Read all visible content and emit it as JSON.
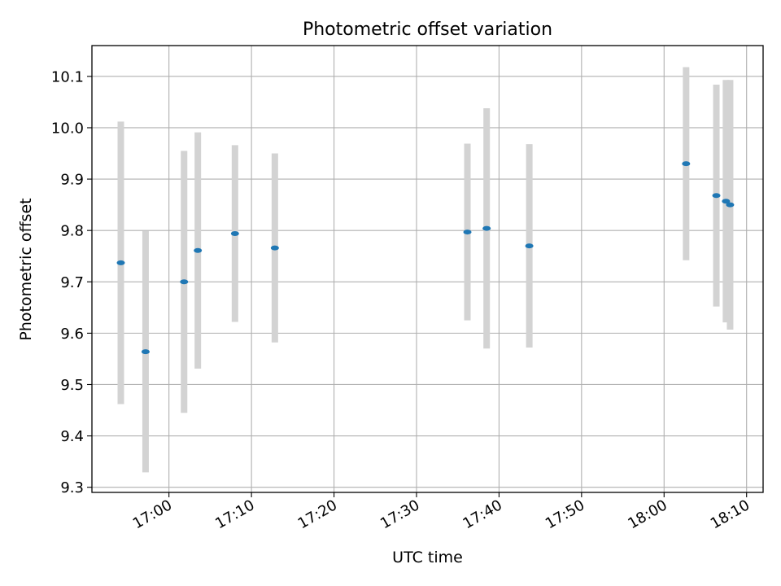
{
  "chart_data": {
    "type": "scatter",
    "title": "Photometric offset variation",
    "xlabel": "UTC time",
    "ylabel": "Photometric offset",
    "x_ticks": [
      "17:00",
      "17:10",
      "17:20",
      "17:30",
      "17:40",
      "17:50",
      "18:00",
      "18:10"
    ],
    "y_ticks": [
      "9.3",
      "9.4",
      "9.5",
      "9.6",
      "9.7",
      "9.8",
      "9.9",
      "10.0",
      "10.1"
    ],
    "xlim": [
      "16:50:40",
      "18:12:00"
    ],
    "ylim": [
      9.29,
      10.16
    ],
    "grid": true,
    "series": [
      {
        "marker_color": "#1f77b4",
        "errorbar_color": "#d3d3d3",
        "points": [
          {
            "x": "16:54:10",
            "y": 9.737,
            "yerr": 0.275
          },
          {
            "x": "16:57:10",
            "y": 9.564,
            "yerr": 0.235
          },
          {
            "x": "17:01:50",
            "y": 9.7,
            "yerr": 0.255
          },
          {
            "x": "17:03:30",
            "y": 9.761,
            "yerr": 0.23
          },
          {
            "x": "17:08:00",
            "y": 9.794,
            "yerr": 0.172
          },
          {
            "x": "17:12:50",
            "y": 9.766,
            "yerr": 0.184
          },
          {
            "x": "17:36:10",
            "y": 9.797,
            "yerr": 0.172
          },
          {
            "x": "17:38:30",
            "y": 9.804,
            "yerr": 0.234
          },
          {
            "x": "17:43:40",
            "y": 9.77,
            "yerr": 0.198
          },
          {
            "x": "18:02:40",
            "y": 9.93,
            "yerr": 0.188
          },
          {
            "x": "18:06:20",
            "y": 9.868,
            "yerr": 0.216
          },
          {
            "x": "18:07:30",
            "y": 9.857,
            "yerr": 0.236
          },
          {
            "x": "18:08:00",
            "y": 9.85,
            "yerr": 0.243
          }
        ]
      }
    ]
  }
}
